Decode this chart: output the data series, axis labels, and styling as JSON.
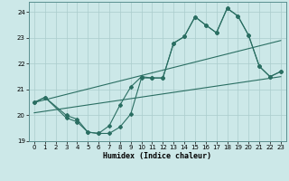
{
  "title": "",
  "xlabel": "Humidex (Indice chaleur)",
  "ylabel": "",
  "bg_color": "#cce8e8",
  "line_color": "#2a6e62",
  "grid_color": "#aacccc",
  "xlim": [
    -0.5,
    23.5
  ],
  "ylim": [
    19,
    24.4
  ],
  "yticks": [
    19,
    20,
    21,
    22,
    23,
    24
  ],
  "xticks": [
    0,
    1,
    2,
    3,
    4,
    5,
    6,
    7,
    8,
    9,
    10,
    11,
    12,
    13,
    14,
    15,
    16,
    17,
    18,
    19,
    20,
    21,
    22,
    23
  ],
  "line1_x": [
    0,
    1,
    3,
    4,
    5,
    6,
    7,
    8,
    9,
    10,
    11,
    12,
    13,
    14,
    15,
    16,
    17,
    18,
    19,
    20,
    21,
    22,
    23
  ],
  "line1_y": [
    20.5,
    20.7,
    20.0,
    19.85,
    19.35,
    19.3,
    19.6,
    20.4,
    21.1,
    21.5,
    21.45,
    21.45,
    22.8,
    23.05,
    23.82,
    23.5,
    23.2,
    24.15,
    23.85,
    23.1,
    21.9,
    21.5,
    21.7
  ],
  "line2_x": [
    0,
    1,
    3,
    4,
    5,
    6,
    7,
    8,
    9,
    10,
    11,
    12,
    13,
    14,
    15,
    16,
    17,
    18,
    19,
    20,
    21,
    22,
    23
  ],
  "line2_y": [
    20.5,
    20.7,
    19.9,
    19.75,
    19.35,
    19.3,
    19.3,
    19.55,
    20.05,
    21.45,
    21.45,
    21.45,
    22.8,
    23.05,
    23.82,
    23.5,
    23.2,
    24.15,
    23.85,
    23.1,
    21.9,
    21.5,
    21.7
  ],
  "line3_x": [
    0,
    23
  ],
  "line3_y": [
    20.5,
    22.9
  ],
  "line4_x": [
    0,
    23
  ],
  "line4_y": [
    20.1,
    21.5
  ]
}
